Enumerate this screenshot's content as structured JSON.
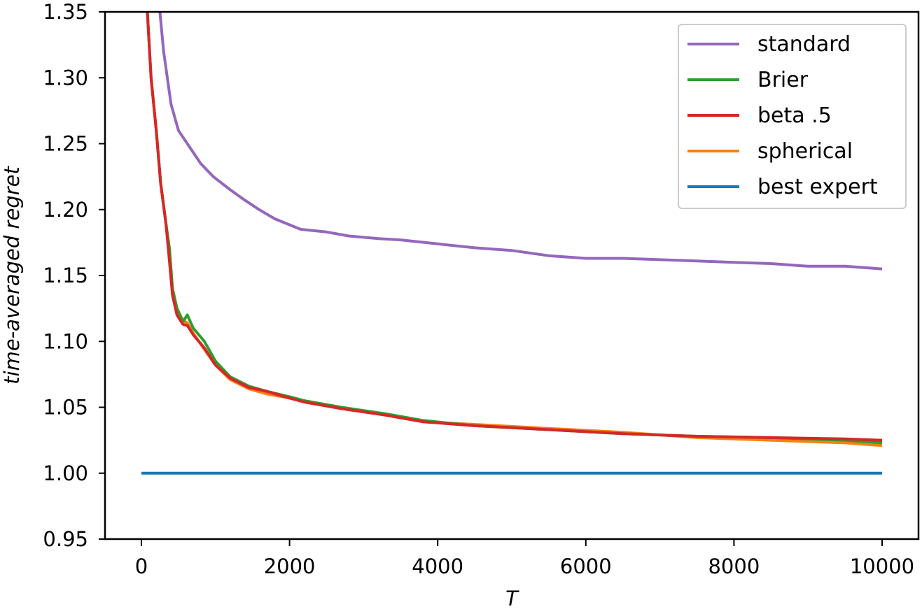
{
  "chart_data": {
    "type": "line",
    "title": "",
    "xlabel": "T",
    "ylabel": "time-averaged regret",
    "xlim": [
      -500,
      10500
    ],
    "ylim": [
      0.95,
      1.35
    ],
    "xticks": [
      0,
      2000,
      4000,
      6000,
      8000,
      10000
    ],
    "xtick_labels": [
      "0",
      "2000",
      "4000",
      "6000",
      "8000",
      "10000"
    ],
    "yticks": [
      0.95,
      1.0,
      1.05,
      1.1,
      1.15,
      1.2,
      1.25,
      1.3,
      1.35
    ],
    "ytick_labels": [
      "0.95",
      "1.00",
      "1.05",
      "1.10",
      "1.15",
      "1.20",
      "1.25",
      "1.30",
      "1.35"
    ],
    "grid": false,
    "legend_position": "upper right",
    "series": [
      {
        "name": "standard",
        "color": "#9467bd",
        "x": [
          250,
          300,
          400,
          500,
          620,
          800,
          970,
          1200,
          1400,
          1590,
          1800,
          2150,
          2500,
          2800,
          3200,
          3500,
          4000,
          4500,
          5000,
          5500,
          6000,
          6500,
          7000,
          7500,
          8000,
          8500,
          9000,
          9500,
          10000
        ],
        "y": [
          1.35,
          1.32,
          1.28,
          1.26,
          1.25,
          1.235,
          1.225,
          1.215,
          1.207,
          1.2,
          1.193,
          1.185,
          1.183,
          1.18,
          1.178,
          1.177,
          1.174,
          1.171,
          1.169,
          1.165,
          1.163,
          1.163,
          1.162,
          1.161,
          1.16,
          1.159,
          1.157,
          1.157,
          1.155
        ]
      },
      {
        "name": "Brier",
        "color": "#2ca02c",
        "x": [
          80,
          130,
          200,
          260,
          330,
          380,
          420,
          480,
          560,
          620,
          700,
          850,
          1000,
          1200,
          1450,
          1700,
          2000,
          2200,
          2700,
          3300,
          3800,
          4500,
          5500,
          6500,
          7500,
          8500,
          9500,
          10000
        ],
        "y": [
          1.35,
          1.3,
          1.26,
          1.22,
          1.19,
          1.17,
          1.14,
          1.125,
          1.115,
          1.12,
          1.11,
          1.1,
          1.085,
          1.073,
          1.066,
          1.062,
          1.058,
          1.055,
          1.05,
          1.045,
          1.04,
          1.036,
          1.033,
          1.03,
          1.028,
          1.027,
          1.025,
          1.023
        ]
      },
      {
        "name": "beta .5",
        "color": "#d62728",
        "x": [
          80,
          130,
          200,
          260,
          330,
          380,
          420,
          480,
          560,
          620,
          700,
          850,
          1000,
          1200,
          1450,
          1700,
          2000,
          2200,
          2700,
          3300,
          3800,
          4500,
          5500,
          6500,
          7500,
          8500,
          9500,
          10000
        ],
        "y": [
          1.35,
          1.3,
          1.26,
          1.22,
          1.19,
          1.16,
          1.135,
          1.12,
          1.113,
          1.112,
          1.105,
          1.095,
          1.082,
          1.072,
          1.065,
          1.062,
          1.057,
          1.054,
          1.049,
          1.044,
          1.039,
          1.036,
          1.033,
          1.03,
          1.028,
          1.027,
          1.026,
          1.025
        ]
      },
      {
        "name": "spherical",
        "color": "#ff7f0e",
        "x": [
          80,
          130,
          200,
          260,
          330,
          380,
          420,
          480,
          560,
          620,
          700,
          850,
          1000,
          1200,
          1450,
          1700,
          2000,
          2200,
          2700,
          3300,
          3800,
          4500,
          5500,
          6500,
          7500,
          8500,
          9500,
          10000
        ],
        "y": [
          1.35,
          1.3,
          1.26,
          1.22,
          1.19,
          1.165,
          1.14,
          1.125,
          1.116,
          1.114,
          1.106,
          1.094,
          1.082,
          1.071,
          1.064,
          1.06,
          1.057,
          1.054,
          1.049,
          1.044,
          1.039,
          1.037,
          1.034,
          1.031,
          1.027,
          1.025,
          1.023,
          1.021
        ]
      },
      {
        "name": "best expert",
        "color": "#1f77b4",
        "x": [
          0,
          10000
        ],
        "y": [
          1.0,
          1.0
        ]
      }
    ]
  },
  "legend": {
    "items": [
      {
        "label": "standard",
        "color": "#9467bd"
      },
      {
        "label": "Brier",
        "color": "#2ca02c"
      },
      {
        "label": "beta .5",
        "color": "#d62728"
      },
      {
        "label": "spherical",
        "color": "#ff7f0e"
      },
      {
        "label": "best expert",
        "color": "#1f77b4"
      }
    ]
  }
}
